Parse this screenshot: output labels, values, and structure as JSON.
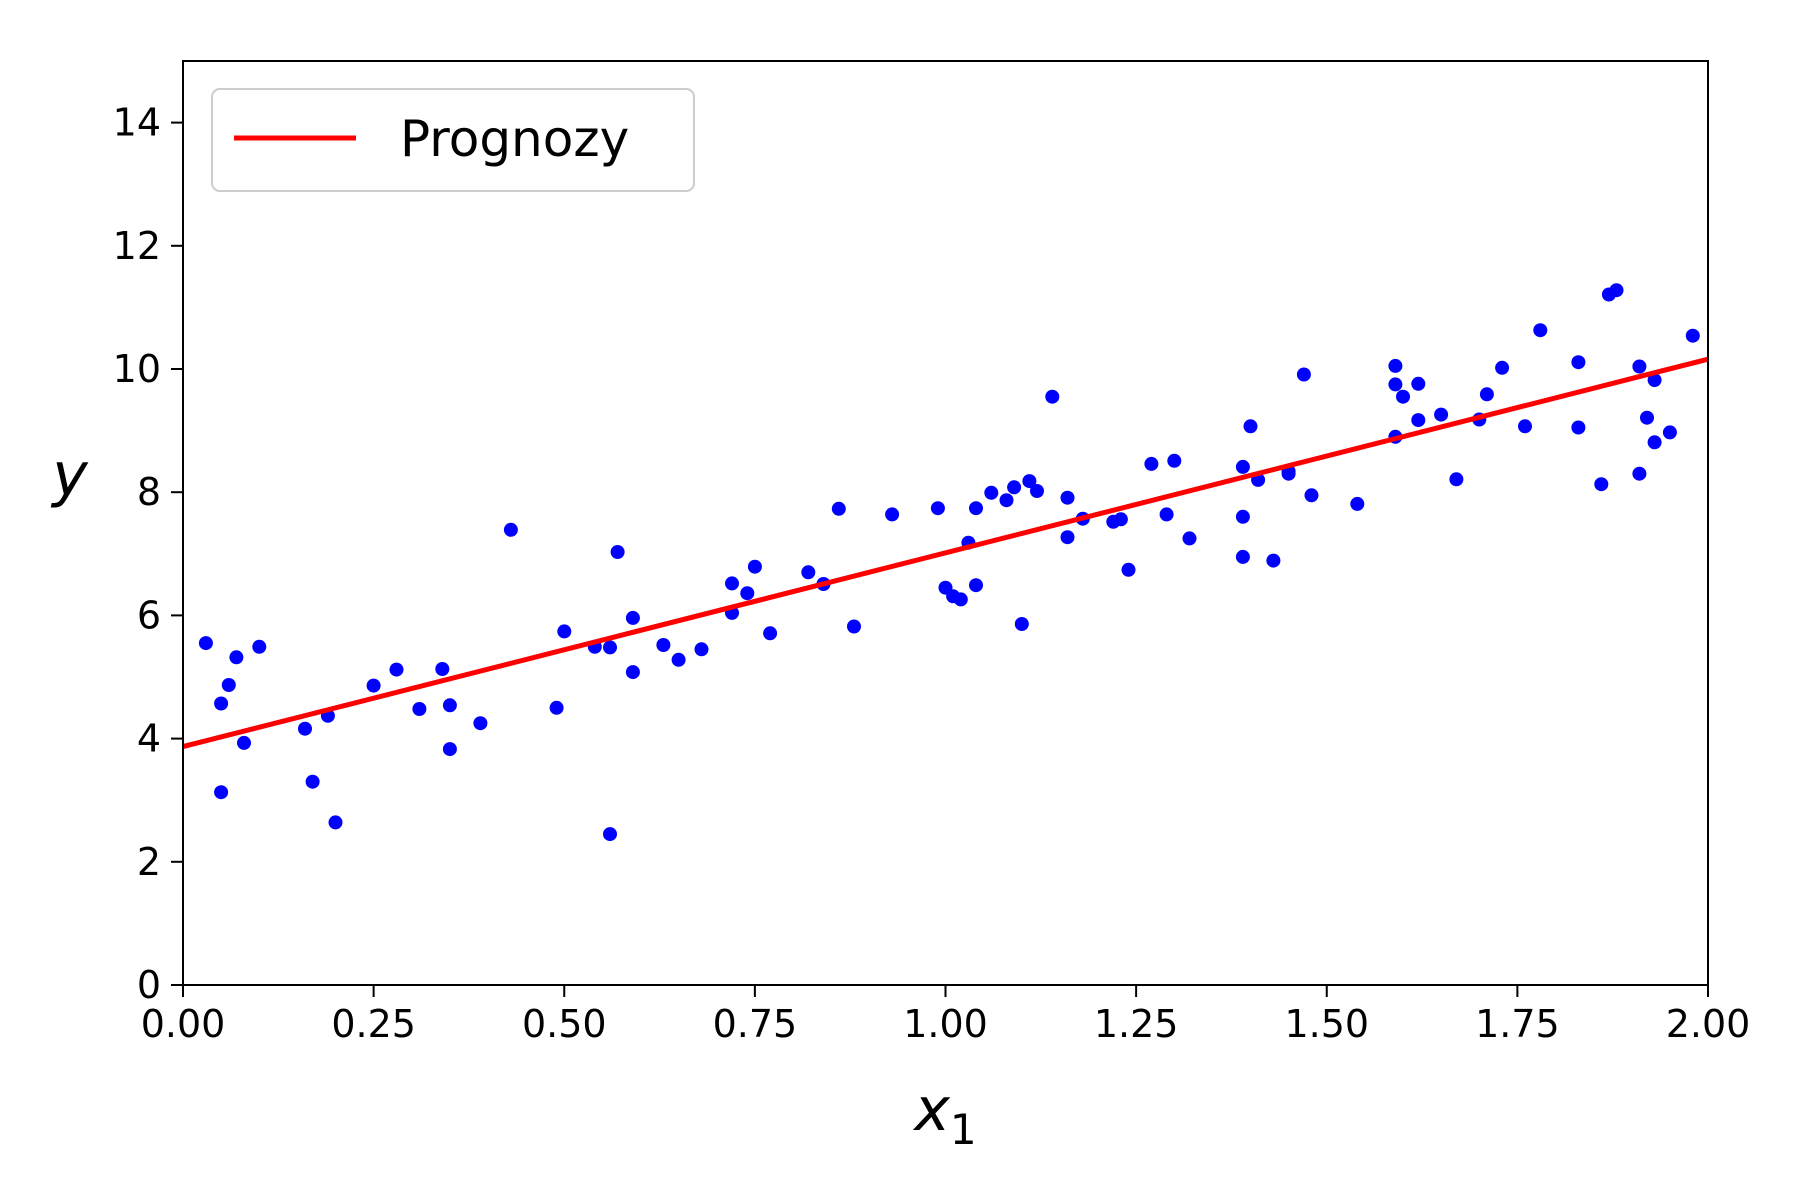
{
  "chart_data": {
    "type": "scatter",
    "title": "",
    "xlabel": "x",
    "xlabel_subscript": "1",
    "ylabel": "y",
    "xlim": [
      0,
      2
    ],
    "ylim": [
      0,
      15
    ],
    "xticks": [
      "0.00",
      "0.25",
      "0.50",
      "0.75",
      "1.00",
      "1.25",
      "1.50",
      "1.75",
      "2.00"
    ],
    "yticks": [
      "0",
      "2",
      "4",
      "6",
      "8",
      "10",
      "12",
      "14"
    ],
    "grid": false,
    "legend_position": "top-left",
    "series": [
      {
        "kind": "line",
        "name": "Prognozy",
        "color": "#ff0000",
        "x": [
          0,
          2
        ],
        "y": [
          3.87,
          10.16
        ]
      },
      {
        "kind": "scatter",
        "color": "#0000ff",
        "points": [
          [
            0.03,
            5.55
          ],
          [
            0.05,
            4.57
          ],
          [
            0.05,
            3.13
          ],
          [
            0.06,
            4.87
          ],
          [
            0.07,
            5.32
          ],
          [
            0.08,
            3.93
          ],
          [
            0.1,
            5.49
          ],
          [
            0.16,
            4.16
          ],
          [
            0.17,
            3.3
          ],
          [
            0.19,
            4.37
          ],
          [
            0.2,
            2.64
          ],
          [
            0.25,
            4.86
          ],
          [
            0.28,
            5.12
          ],
          [
            0.31,
            4.48
          ],
          [
            0.34,
            5.13
          ],
          [
            0.35,
            4.54
          ],
          [
            0.35,
            3.83
          ],
          [
            0.39,
            4.25
          ],
          [
            0.43,
            7.39
          ],
          [
            0.49,
            4.5
          ],
          [
            0.5,
            5.74
          ],
          [
            0.54,
            5.49
          ],
          [
            0.56,
            5.48
          ],
          [
            0.56,
            2.45
          ],
          [
            0.57,
            7.03
          ],
          [
            0.59,
            5.96
          ],
          [
            0.59,
            5.08
          ],
          [
            0.63,
            5.52
          ],
          [
            0.65,
            5.28
          ],
          [
            0.68,
            5.45
          ],
          [
            0.72,
            6.52
          ],
          [
            0.72,
            6.04
          ],
          [
            0.74,
            6.36
          ],
          [
            0.75,
            6.79
          ],
          [
            0.77,
            5.71
          ],
          [
            0.82,
            6.7
          ],
          [
            0.84,
            6.51
          ],
          [
            0.86,
            7.73
          ],
          [
            0.88,
            5.82
          ],
          [
            0.93,
            7.64
          ],
          [
            0.99,
            7.74
          ],
          [
            1.0,
            6.45
          ],
          [
            1.01,
            6.31
          ],
          [
            1.02,
            6.26
          ],
          [
            1.03,
            7.18
          ],
          [
            1.04,
            6.49
          ],
          [
            1.04,
            7.74
          ],
          [
            1.06,
            7.99
          ],
          [
            1.08,
            7.87
          ],
          [
            1.09,
            8.08
          ],
          [
            1.1,
            5.86
          ],
          [
            1.11,
            8.18
          ],
          [
            1.12,
            8.02
          ],
          [
            1.14,
            9.55
          ],
          [
            1.16,
            7.91
          ],
          [
            1.16,
            7.27
          ],
          [
            1.18,
            7.57
          ],
          [
            1.22,
            7.52
          ],
          [
            1.23,
            7.56
          ],
          [
            1.24,
            6.74
          ],
          [
            1.27,
            8.46
          ],
          [
            1.29,
            7.64
          ],
          [
            1.3,
            8.51
          ],
          [
            1.32,
            7.25
          ],
          [
            1.39,
            8.41
          ],
          [
            1.39,
            7.6
          ],
          [
            1.39,
            6.95
          ],
          [
            1.4,
            9.07
          ],
          [
            1.41,
            8.2
          ],
          [
            1.43,
            6.89
          ],
          [
            1.45,
            8.3
          ],
          [
            1.45,
            8.34
          ],
          [
            1.47,
            9.91
          ],
          [
            1.48,
            7.95
          ],
          [
            1.54,
            7.81
          ],
          [
            1.59,
            10.05
          ],
          [
            1.59,
            9.75
          ],
          [
            1.6,
            9.55
          ],
          [
            1.59,
            8.9
          ],
          [
            1.62,
            9.76
          ],
          [
            1.62,
            9.17
          ],
          [
            1.65,
            9.26
          ],
          [
            1.67,
            8.21
          ],
          [
            1.7,
            9.18
          ],
          [
            1.71,
            9.59
          ],
          [
            1.73,
            10.02
          ],
          [
            1.76,
            9.07
          ],
          [
            1.78,
            10.63
          ],
          [
            1.83,
            10.11
          ],
          [
            1.83,
            9.05
          ],
          [
            1.86,
            8.13
          ],
          [
            1.87,
            11.21
          ],
          [
            1.88,
            11.28
          ],
          [
            1.91,
            10.04
          ],
          [
            1.91,
            8.3
          ],
          [
            1.92,
            9.21
          ],
          [
            1.93,
            9.82
          ],
          [
            1.93,
            8.81
          ],
          [
            1.95,
            8.97
          ],
          [
            1.98,
            10.54
          ]
        ]
      }
    ]
  }
}
